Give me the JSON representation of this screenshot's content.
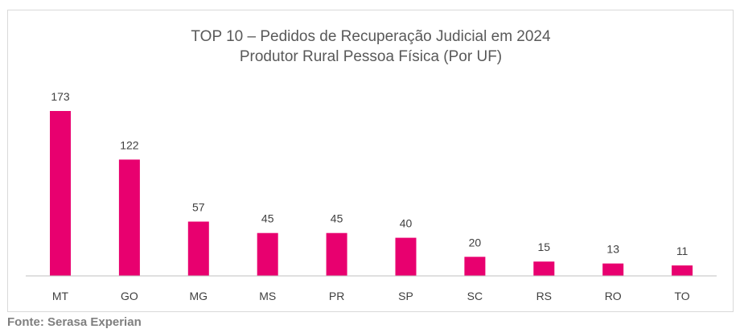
{
  "chart_data": {
    "type": "bar",
    "title": "TOP 10 – Pedidos de Recuperação Judicial em 2024",
    "subtitle": "Produtor Rural Pessoa Física (Por UF)",
    "categories": [
      "MT",
      "GO",
      "MG",
      "MS",
      "PR",
      "SP",
      "SC",
      "RS",
      "RO",
      "TO"
    ],
    "values": [
      173,
      122,
      57,
      45,
      45,
      40,
      20,
      15,
      13,
      11
    ],
    "xlabel": "",
    "ylabel": "",
    "ylim": [
      0,
      173
    ],
    "grid": false,
    "legend": "none",
    "data_labels": true,
    "bar_color": "#e8006f",
    "axis_color": "#bfbfbf"
  },
  "source": "Fonte: Serasa Experian"
}
